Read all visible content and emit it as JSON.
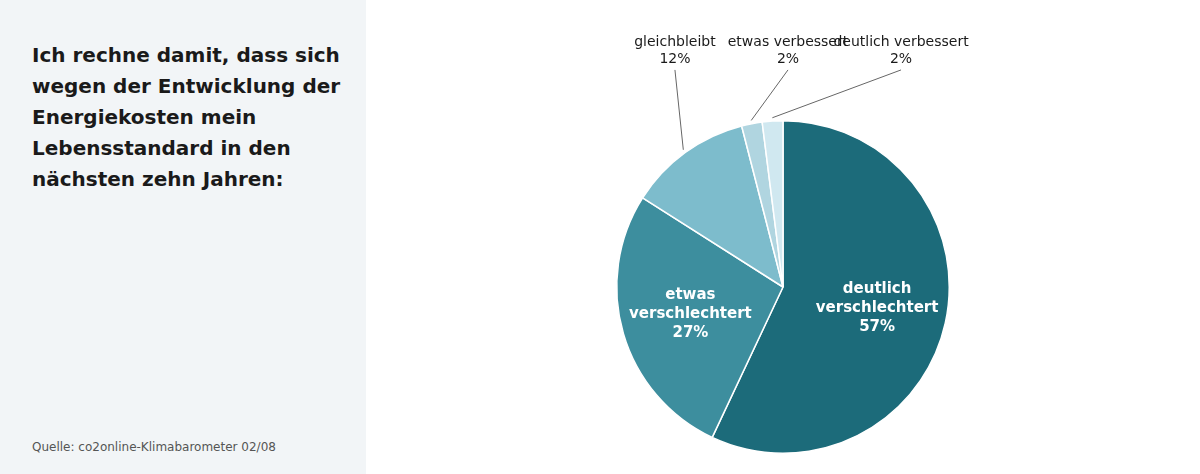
{
  "chart_data": {
    "type": "pie",
    "title": [
      "Ich rechne damit, dass sich",
      "wegen der Entwicklung der",
      "Energiekosten mein",
      "Lebensstandard in den",
      "nächsten zehn Jahren:"
    ],
    "annotations": [
      "Quelle: co2online-Klimabarometer 02/08"
    ],
    "categories": [
      "deutlich verschlechtert",
      "etwas verschlechtert",
      "gleichbleibt",
      "etwas verbessert",
      "deutlich verbessert"
    ],
    "values": [
      57,
      27,
      12,
      2,
      2
    ],
    "value_labels": [
      "57%",
      "27%",
      "12%",
      "2%",
      "2%"
    ],
    "colors": [
      "#1c6b7a",
      "#3d8e9e",
      "#7dbccc",
      "#b0d5e0",
      "#d0e8f0"
    ],
    "data_labels": true,
    "legend": false
  }
}
